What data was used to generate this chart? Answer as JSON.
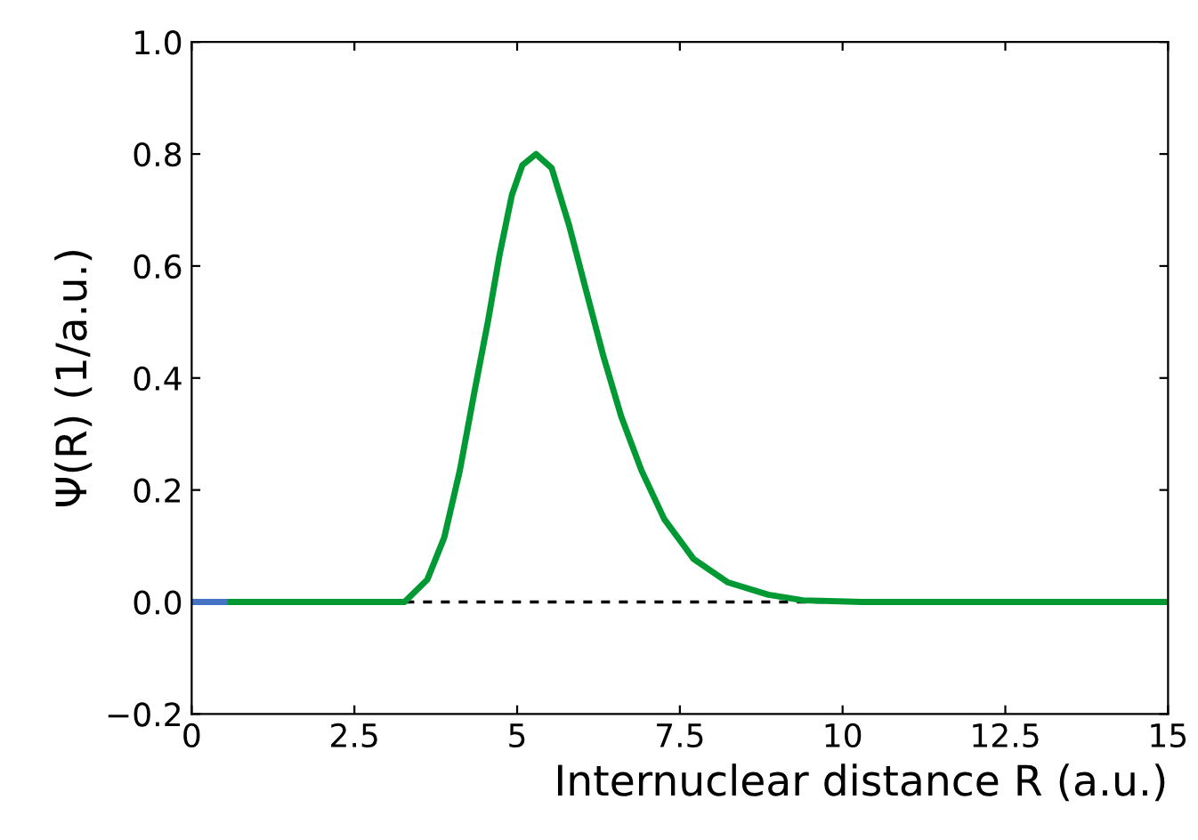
{
  "chart_data": {
    "type": "line",
    "xlabel": "Internuclear distance R (a.u.)",
    "ylabel": "Ψ(R) (1/a.u.)",
    "xlim": [
      0,
      15
    ],
    "ylim": [
      -0.2,
      1.0
    ],
    "xticks": [
      0,
      2.5,
      5,
      7.5,
      10,
      12.5,
      15
    ],
    "yticks": [
      {
        "value": -0.2,
        "label": "−0.2"
      },
      {
        "value": 0,
        "label": "0.0"
      },
      {
        "value": 0.2,
        "label": "0.2"
      },
      {
        "value": 0.4,
        "label": "0.4"
      },
      {
        "value": 0.6,
        "label": "0.6"
      },
      {
        "value": 0.8,
        "label": "0.8"
      },
      {
        "value": 1.0,
        "label": "1.0"
      }
    ],
    "grid": false,
    "legend": false,
    "marker": "none",
    "line_style": "solid",
    "ref_lines": [
      {
        "axis": "y",
        "value": 0,
        "color": "#000000",
        "line_style": "dashed"
      }
    ],
    "series": [
      {
        "color": "#4472c4",
        "x": [
          0,
          0.6
        ],
        "values": [
          0,
          0
        ]
      },
      {
        "color": "#009933",
        "x": [
          0.6,
          3.0,
          3.27,
          3.62,
          3.88,
          4.12,
          4.34,
          4.55,
          4.73,
          4.92,
          5.08,
          5.29,
          5.53,
          5.8,
          6.06,
          6.33,
          6.6,
          6.91,
          7.26,
          7.71,
          8.24,
          8.86,
          9.39,
          10.3,
          15
        ],
        "values": [
          0,
          0,
          0,
          0.04,
          0.115,
          0.235,
          0.373,
          0.5,
          0.62,
          0.727,
          0.78,
          0.8,
          0.775,
          0.672,
          0.556,
          0.437,
          0.331,
          0.235,
          0.148,
          0.077,
          0.035,
          0.013,
          0.003,
          0,
          0
        ]
      }
    ]
  }
}
